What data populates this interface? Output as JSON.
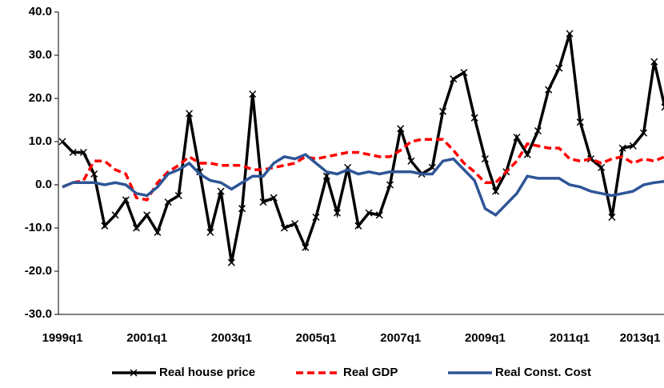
{
  "chart_data": {
    "type": "line",
    "categories": [
      "1999q1",
      null,
      null,
      null,
      null,
      null,
      null,
      null,
      "2001q1",
      null,
      null,
      null,
      null,
      null,
      null,
      null,
      "2003q1",
      null,
      null,
      null,
      null,
      null,
      null,
      null,
      "2005q1",
      null,
      null,
      null,
      null,
      null,
      null,
      null,
      "2007q1",
      null,
      null,
      null,
      null,
      null,
      null,
      null,
      "2009q1",
      null,
      null,
      null,
      null,
      null,
      null,
      null,
      "2011q1",
      null,
      null,
      null,
      null,
      null,
      null,
      null,
      "2013q1",
      null
    ],
    "series": [
      {
        "name": "Real house price",
        "color": "#000000",
        "dash": false,
        "marker": "x",
        "values": [
          10,
          7.5,
          7.5,
          2.5,
          -9.5,
          -7,
          -3.5,
          -10,
          -7,
          -11,
          -4,
          -2.5,
          16.5,
          3,
          -11,
          -1.5,
          -18,
          -5.5,
          21,
          -4,
          -3,
          -10,
          -9,
          -14.5,
          -7.5,
          2,
          -6.5,
          4,
          -9.5,
          -6.5,
          -7,
          0,
          13,
          5.5,
          2.5,
          4,
          17,
          24.5,
          26,
          15.5,
          6,
          -1.5,
          3,
          11,
          7,
          12.5,
          22,
          27,
          35,
          14.5,
          6,
          4,
          -7.5,
          8.5,
          9,
          12,
          28.5,
          18
        ]
      },
      {
        "name": "Real GDP",
        "color": "#ff0000",
        "dash": true,
        "values": [
          -0.5,
          0.5,
          1,
          5.5,
          5.5,
          3.5,
          2.5,
          -3,
          -3.5,
          0.5,
          3,
          4.5,
          6.5,
          5,
          5,
          4.5,
          4.5,
          4.5,
          3.5,
          3.5,
          4,
          4.5,
          5,
          6.5,
          6,
          6.5,
          7,
          7.5,
          7.5,
          7,
          6.5,
          6.5,
          8,
          10,
          10.5,
          10.5,
          10.5,
          8,
          5,
          3,
          0.5,
          0.5,
          3,
          5.5,
          9.5,
          9,
          8.5,
          8.5,
          6,
          5.5,
          6,
          5,
          6,
          6.5,
          5,
          6,
          5.5,
          6.5
        ]
      },
      {
        "name": "Real Const. Cost",
        "color": "#2e5597",
        "dash": false,
        "values": [
          -0.5,
          0.5,
          0.5,
          0.5,
          0,
          0.5,
          0,
          -2,
          -2.5,
          -0.5,
          2.5,
          3.5,
          5,
          2.5,
          1,
          0.5,
          -1,
          0.5,
          2,
          2,
          5,
          6.5,
          6,
          7,
          5,
          3,
          2.5,
          3.5,
          2.5,
          3,
          2.5,
          3,
          3,
          3,
          2.5,
          2.5,
          5.5,
          6,
          3.5,
          1,
          -5.5,
          -7,
          -4.5,
          -2,
          2,
          1.5,
          1.5,
          1.5,
          0,
          -0.5,
          -1.5,
          -2,
          -2.5,
          -2,
          -1.5,
          0,
          0.5,
          0.8
        ]
      }
    ],
    "ylim": [
      -30,
      40
    ],
    "yticks": [
      {
        "value": -30,
        "label": "-30.0"
      },
      {
        "value": -20,
        "label": "-20.0"
      },
      {
        "value": -10,
        "label": "-10.0"
      },
      {
        "value": 0,
        "label": "0.0"
      },
      {
        "value": 10,
        "label": "10.0"
      },
      {
        "value": 20,
        "label": "20.0"
      },
      {
        "value": 30,
        "label": "30.0"
      },
      {
        "value": 40,
        "label": "40.0"
      }
    ],
    "legend": "bottom"
  }
}
